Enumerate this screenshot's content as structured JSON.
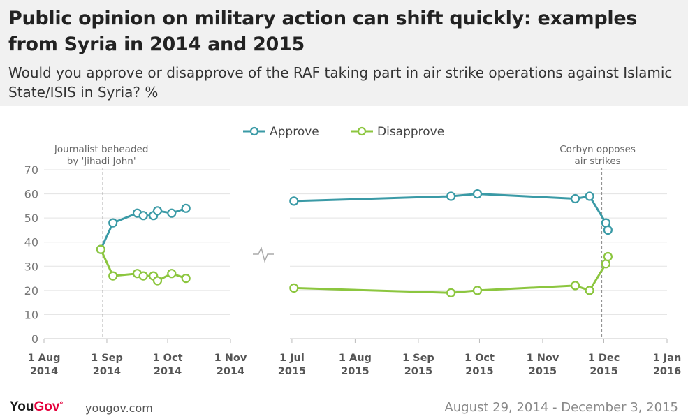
{
  "header": {
    "title": "Public opinion on military action can shift quickly: examples from Syria in 2014 and 2015",
    "subtitle": "Would you approve or disapprove of the RAF taking part in air strike operations against Islamic State/ISIS in Syria? %"
  },
  "footer": {
    "logo_you": "YouGov",
    "logo_mark": "°",
    "url": "yougov.com",
    "date_range": "August 29, 2014 - December 3, 2015"
  },
  "colors": {
    "approve": "#3a9aa6",
    "disapprove": "#8cc63f",
    "grid": "#e3e3e3",
    "axis": "#999999",
    "text": "#555555"
  },
  "chart_data": [
    {
      "type": "line",
      "period": "2014",
      "x_ticks": [
        "1 Aug\n2014",
        "1 Sep\n2014",
        "1 Oct\n2014",
        "1 Nov\n2014"
      ],
      "x_tick_dates": [
        "2014-08-01",
        "2014-09-01",
        "2014-10-01",
        "2014-11-01"
      ],
      "xlim": [
        "2014-08-01",
        "2014-11-01"
      ],
      "ylim": [
        0,
        70
      ],
      "y_ticks": [
        "0",
        "10",
        "20",
        "30",
        "40",
        "50",
        "60",
        "70"
      ],
      "grid": true,
      "legend_position": "top-center",
      "annotation": {
        "text": "Journalist beheaded\nby 'Jihadi John'",
        "date": "2014-08-30"
      },
      "series": [
        {
          "name": "Approve",
          "x": [
            "2014-08-29",
            "2014-09-04",
            "2014-09-16",
            "2014-09-19",
            "2014-09-24",
            "2014-09-26",
            "2014-10-03",
            "2014-10-10"
          ],
          "values": [
            37,
            48,
            52,
            51,
            51,
            53,
            52,
            54
          ]
        },
        {
          "name": "Disapprove",
          "x": [
            "2014-08-29",
            "2014-09-04",
            "2014-09-16",
            "2014-09-19",
            "2014-09-24",
            "2014-09-26",
            "2014-10-03",
            "2014-10-10"
          ],
          "values": [
            37,
            26,
            27,
            26,
            26,
            24,
            27,
            25
          ]
        }
      ]
    },
    {
      "type": "line",
      "period": "2015",
      "x_ticks": [
        "1 Jul\n2015",
        "1 Aug\n2015",
        "1 Sep\n2015",
        "1 Oct\n2015",
        "1 Nov\n2015",
        "1 Dec\n2015",
        "1 Jan\n2016"
      ],
      "x_tick_dates": [
        "2015-07-01",
        "2015-08-01",
        "2015-09-01",
        "2015-10-01",
        "2015-11-01",
        "2015-12-01",
        "2016-01-01"
      ],
      "xlim": [
        "2015-06-30",
        "2016-01-01"
      ],
      "ylim": [
        0,
        70
      ],
      "grid": true,
      "annotation": {
        "text": "Corbyn opposes\nair strikes",
        "date": "2015-11-30"
      },
      "series": [
        {
          "name": "Approve",
          "x": [
            "2015-07-02",
            "2015-09-17",
            "2015-09-30",
            "2015-11-17",
            "2015-11-24",
            "2015-12-02",
            "2015-12-03"
          ],
          "values": [
            57,
            59,
            60,
            58,
            59,
            48,
            45
          ]
        },
        {
          "name": "Disapprove",
          "x": [
            "2015-07-02",
            "2015-09-17",
            "2015-09-30",
            "2015-11-17",
            "2015-11-24",
            "2015-12-02",
            "2015-12-03"
          ],
          "values": [
            21,
            19,
            20,
            22,
            20,
            31,
            34
          ]
        }
      ]
    }
  ]
}
